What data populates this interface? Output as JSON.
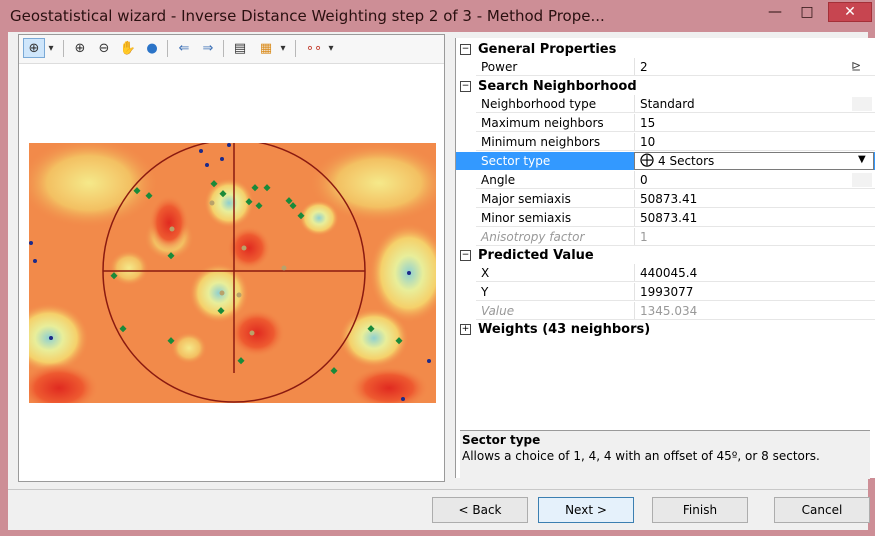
{
  "window": {
    "title": "Geostatistical wizard - Inverse Distance Weighting step 2 of 3 - Method Prope...",
    "minimize_glyph": "—",
    "maximize_glyph": "□",
    "close_glyph": "✕"
  },
  "toolbar": {
    "icons": [
      "select-icon",
      "dropdown-icon",
      "zoom-in-icon",
      "zoom-out-icon",
      "pan-hand-icon",
      "globe-icon",
      "back-arrow-icon",
      "forward-arrow-icon",
      "table-icon",
      "layer-icon",
      "dropdown-icon",
      "symbology-icon",
      "dropdown-icon"
    ],
    "glyphs": {
      "select": "⊕",
      "dropdown": "▾",
      "zoom_in": "⊕",
      "zoom_out": "⊖",
      "pan": "✋",
      "globe": "●",
      "back": "⇐",
      "forward": "⇒",
      "table": "▤",
      "layer": "▦",
      "symbology": "∘∘"
    }
  },
  "properties": {
    "general": {
      "header": "General Properties",
      "power_label": "Power",
      "power_value": "2"
    },
    "search": {
      "header": "Search Neighborhood",
      "rows": [
        {
          "label": "Neighborhood type",
          "value": "Standard"
        },
        {
          "label": "Maximum neighbors",
          "value": "15"
        },
        {
          "label": "Minimum neighbors",
          "value": "10"
        },
        {
          "label": "Sector type",
          "value": "4 Sectors"
        },
        {
          "label": "Angle",
          "value": "0"
        },
        {
          "label": "Major semiaxis",
          "value": "50873.41"
        },
        {
          "label": "Minor semiaxis",
          "value": "50873.41"
        },
        {
          "label": "Anisotropy factor",
          "value": "1"
        }
      ]
    },
    "predicted": {
      "header": "Predicted Value",
      "rows": [
        {
          "label": "X",
          "value": "440045.4"
        },
        {
          "label": "Y",
          "value": "1993077"
        },
        {
          "label": "Value",
          "value": "1345.034"
        }
      ]
    },
    "weights": {
      "header": "Weights (43 neighbors)"
    }
  },
  "description": {
    "title": "Sector type",
    "text": "Allows a choice of 1, 4, 4 with an offset of 45º, or 8 sectors."
  },
  "buttons": {
    "back": "< Back",
    "next": "Next >",
    "finish": "Finish",
    "cancel": "Cancel"
  },
  "colors": {
    "title_bar": "#cd8e96",
    "close_button": "#c74550",
    "selected_row": "#3399ff",
    "map_orange": "#f28a4a",
    "map_red": "#e6332a",
    "map_yellow": "#f5e27a",
    "map_teal": "#9fd4c8",
    "point_green": "#1a8a3a",
    "point_blue": "#1b2a8a",
    "search_circle": "#8a1a10"
  }
}
